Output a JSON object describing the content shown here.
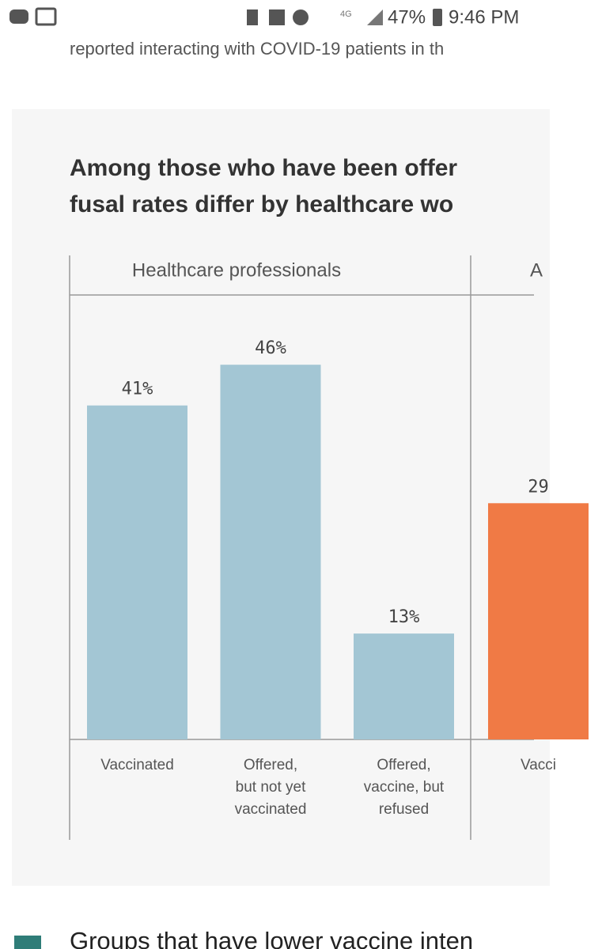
{
  "status_bar": {
    "network": "4G",
    "battery": "47%",
    "time": "9:46 PM"
  },
  "article": {
    "intro_text": "reported interacting with COVID-19 patients in th"
  },
  "chart_data": {
    "type": "bar",
    "title": [
      "Among those who have been offer",
      "fusal rates differ by healthcare wo"
    ],
    "panels": [
      {
        "group": "Healthcare professionals",
        "color": "#a3c6d4",
        "categories": [
          "Vaccinated",
          "Offered,\nbut not yet\nvaccinated",
          "Offered,\nvaccine, but\nrefused"
        ],
        "values": [
          41,
          46,
          13
        ],
        "value_labels": [
          "41%",
          "46%",
          "13%"
        ]
      },
      {
        "group": "A",
        "color": "#f07a45",
        "categories": [
          "Vacci"
        ],
        "values": [
          29
        ],
        "value_labels": [
          "29"
        ]
      }
    ]
  },
  "legend": {
    "text": "Groups that have lower vaccine inten",
    "color": "#2f7d78"
  }
}
